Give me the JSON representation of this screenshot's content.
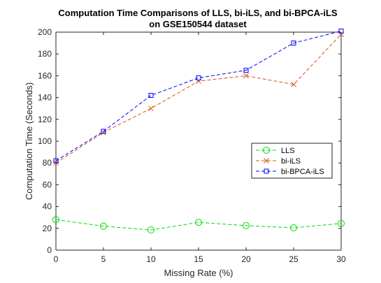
{
  "chart_data": {
    "type": "line",
    "title": "Computation Time Comparisons of LLS, bi-iLS, and bi-BPCA-iLS",
    "subtitle": "on GSE150544 dataset",
    "xlabel": "Missing Rate (%)",
    "ylabel": "Computation Time (Seconds)",
    "x": [
      0,
      5,
      10,
      15,
      20,
      25,
      30
    ],
    "xlim": [
      0,
      30
    ],
    "ylim": [
      0,
      200
    ],
    "xticks": [
      0,
      5,
      10,
      15,
      20,
      25,
      30
    ],
    "yticks": [
      0,
      20,
      40,
      60,
      80,
      100,
      120,
      140,
      160,
      180,
      200
    ],
    "grid": false,
    "legend_position": "right",
    "series": [
      {
        "name": "LLS",
        "values": [
          28,
          22,
          18.5,
          25.5,
          22.5,
          20.5,
          24.5
        ],
        "color": "#00dd00",
        "marker": "circle",
        "line_style": "dashed"
      },
      {
        "name": "bi-iLS",
        "values": [
          80,
          108,
          130,
          155,
          160,
          152,
          198
        ],
        "color": "#d95319",
        "marker": "x",
        "line_style": "dashed"
      },
      {
        "name": "bi-BPCA-iLS",
        "values": [
          82,
          109,
          142,
          158,
          165,
          190,
          201
        ],
        "color": "#0000ff",
        "marker": "square",
        "line_style": "dashed"
      }
    ]
  }
}
